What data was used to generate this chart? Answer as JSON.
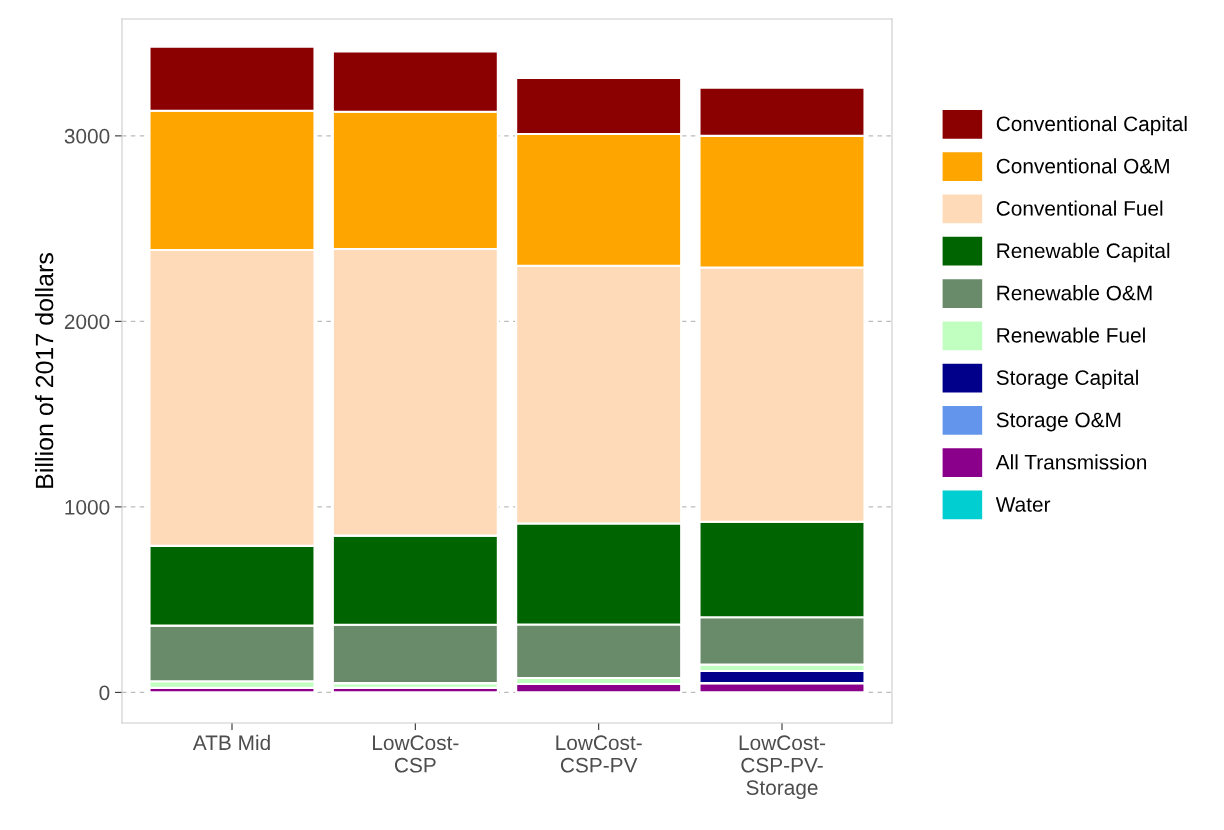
{
  "chart_data": {
    "type": "bar",
    "stacked": true,
    "ylabel": "Billion of 2017 dollars",
    "categories": [
      "ATB Mid",
      "LowCost-\nCSP",
      "LowCost-\nCSP-PV",
      "LowCost-\nCSP-PV-\nStorage"
    ],
    "series": [
      {
        "name": "Water",
        "color": "#00ced1",
        "values": [
          0,
          0,
          0,
          0
        ]
      },
      {
        "name": "All Transmission",
        "color": "#8b008b",
        "values": [
          25,
          25,
          45,
          50
        ]
      },
      {
        "name": "Storage O&M",
        "color": "#6495ed",
        "values": [
          0,
          0,
          0,
          0
        ]
      },
      {
        "name": "Storage Capital",
        "color": "#00008b",
        "values": [
          0,
          0,
          0,
          65
        ]
      },
      {
        "name": "Renewable Fuel",
        "color": "#c1ffc1",
        "values": [
          35,
          25,
          33,
          35
        ]
      },
      {
        "name": "Renewable O&M",
        "color": "#698b69",
        "values": [
          300,
          315,
          288,
          255
        ]
      },
      {
        "name": "Renewable Capital",
        "color": "#006400",
        "values": [
          430,
          480,
          544,
          515
        ]
      },
      {
        "name": "Conventional Fuel",
        "color": "#ffdab9",
        "values": [
          1595,
          1545,
          1390,
          1370
        ]
      },
      {
        "name": "Conventional O&M",
        "color": "#ffa500",
        "values": [
          750,
          740,
          710,
          710
        ]
      },
      {
        "name": "Conventional Capital",
        "color": "#8b0000",
        "values": [
          345,
          325,
          302,
          260
        ]
      }
    ],
    "ylim": [
      -165,
      3630
    ],
    "yticks": [
      0,
      1000,
      2000,
      3000
    ],
    "grid": "y",
    "legend": "right"
  }
}
